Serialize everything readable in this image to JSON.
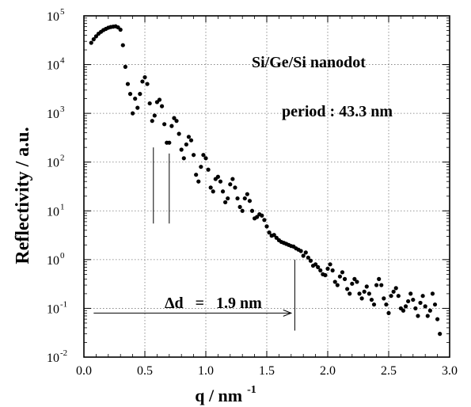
{
  "chart_data": {
    "type": "scatter",
    "title": "",
    "xlabel": "q / nm",
    "xlabel_exponent": "-1",
    "ylabel": "Reflectivity / a.u.",
    "y_scale": "log",
    "xlim": [
      0.0,
      3.0
    ],
    "ylim": [
      0.01,
      100000
    ],
    "grid": true,
    "x_ticks": [
      "0.0",
      "0.5",
      "1.0",
      "1.5",
      "2.0",
      "2.5",
      "3.0"
    ],
    "y_ticks": [
      {
        "base": "10",
        "exp": "-2",
        "value": 0.01
      },
      {
        "base": "10",
        "exp": "-1",
        "value": 0.1
      },
      {
        "base": "10",
        "exp": "0",
        "value": 1
      },
      {
        "base": "10",
        "exp": "1",
        "value": 10
      },
      {
        "base": "10",
        "exp": "2",
        "value": 100
      },
      {
        "base": "10",
        "exp": "3",
        "value": 1000
      },
      {
        "base": "10",
        "exp": "4",
        "value": 10000
      },
      {
        "base": "10",
        "exp": "5",
        "value": 100000
      }
    ],
    "annotations": {
      "sample": "Si/Ge/Si nanodot",
      "period": "period : 43.3 nm",
      "delta": "Δd   =   1.9 nm"
    },
    "markers": [
      {
        "x": 0.57,
        "y_top": 200,
        "y_bottom": 5.5
      },
      {
        "x": 0.7,
        "y_top": 150,
        "y_bottom": 5.5
      },
      {
        "x": 1.73,
        "y_top": 1.0,
        "y_bottom": 0.035
      }
    ],
    "arrow": {
      "x_start": 0.08,
      "x_end": 1.7,
      "y": 0.08
    },
    "series": [
      {
        "x": [
          0.06,
          0.08,
          0.1,
          0.12,
          0.14,
          0.16,
          0.18,
          0.2,
          0.22,
          0.24,
          0.26,
          0.28,
          0.3,
          0.32,
          0.34,
          0.36,
          0.38,
          0.4,
          0.42,
          0.44,
          0.46,
          0.48,
          0.5,
          0.52,
          0.54,
          0.56,
          0.58,
          0.6,
          0.62,
          0.64,
          0.66,
          0.68,
          0.7,
          0.72,
          0.74,
          0.76,
          0.78,
          0.8,
          0.82,
          0.84,
          0.86,
          0.88,
          0.9,
          0.92,
          0.94,
          0.96,
          0.98,
          1.0,
          1.02,
          1.04,
          1.06,
          1.08,
          1.1,
          1.12,
          1.14,
          1.16,
          1.18,
          1.2,
          1.22,
          1.24,
          1.26,
          1.28,
          1.3,
          1.32,
          1.34,
          1.36,
          1.38,
          1.4,
          1.42,
          1.44,
          1.46,
          1.48,
          1.5,
          1.52,
          1.54,
          1.56,
          1.58,
          1.6,
          1.62,
          1.64,
          1.66,
          1.68,
          1.7,
          1.72,
          1.74,
          1.76,
          1.78,
          1.8,
          1.82,
          1.84,
          1.86,
          1.88,
          1.9,
          1.92,
          1.94,
          1.96,
          1.98,
          2.0,
          2.02,
          2.04,
          2.06,
          2.08,
          2.1,
          2.12,
          2.14,
          2.16,
          2.18,
          2.2,
          2.22,
          2.24,
          2.26,
          2.28,
          2.3,
          2.32,
          2.34,
          2.36,
          2.38,
          2.4,
          2.42,
          2.44,
          2.46,
          2.48,
          2.5,
          2.52,
          2.54,
          2.56,
          2.58,
          2.6,
          2.62,
          2.64,
          2.66,
          2.68,
          2.7,
          2.72,
          2.74,
          2.76,
          2.78,
          2.8,
          2.82,
          2.84,
          2.86,
          2.88,
          2.9,
          2.92
        ],
        "y": [
          28000,
          33000,
          38000,
          43000,
          47000,
          51000,
          54000,
          57000,
          59000,
          60000,
          61000,
          58000,
          52000,
          25000,
          9000,
          4000,
          2500,
          1000,
          2000,
          1300,
          2500,
          4500,
          5500,
          4000,
          1600,
          700,
          900,
          1700,
          1900,
          1400,
          600,
          250,
          250,
          550,
          800,
          700,
          380,
          180,
          120,
          230,
          330,
          280,
          140,
          55,
          40,
          80,
          140,
          120,
          70,
          30,
          25,
          45,
          50,
          40,
          25,
          15,
          18,
          35,
          45,
          30,
          18,
          12,
          10,
          18,
          22,
          16,
          10,
          7,
          7.5,
          8.5,
          8,
          6.5,
          4.8,
          3.6,
          3.1,
          3.2,
          2.8,
          2.5,
          2.3,
          2.2,
          2.1,
          2.0,
          1.9,
          1.85,
          1.7,
          1.6,
          1.5,
          1.2,
          1.4,
          1.1,
          0.95,
          0.75,
          0.8,
          0.7,
          0.6,
          0.5,
          0.48,
          0.65,
          0.8,
          0.6,
          0.35,
          0.3,
          0.45,
          0.55,
          0.4,
          0.25,
          0.2,
          0.32,
          0.4,
          0.35,
          0.2,
          0.16,
          0.22,
          0.28,
          0.2,
          0.15,
          0.12,
          0.3,
          0.4,
          0.3,
          0.16,
          0.12,
          0.08,
          0.18,
          0.22,
          0.26,
          0.18,
          0.1,
          0.09,
          0.11,
          0.14,
          0.2,
          0.15,
          0.1,
          0.07,
          0.13,
          0.18,
          0.11,
          0.07,
          0.09,
          0.2,
          0.12,
          0.06,
          0.03
        ]
      }
    ]
  }
}
